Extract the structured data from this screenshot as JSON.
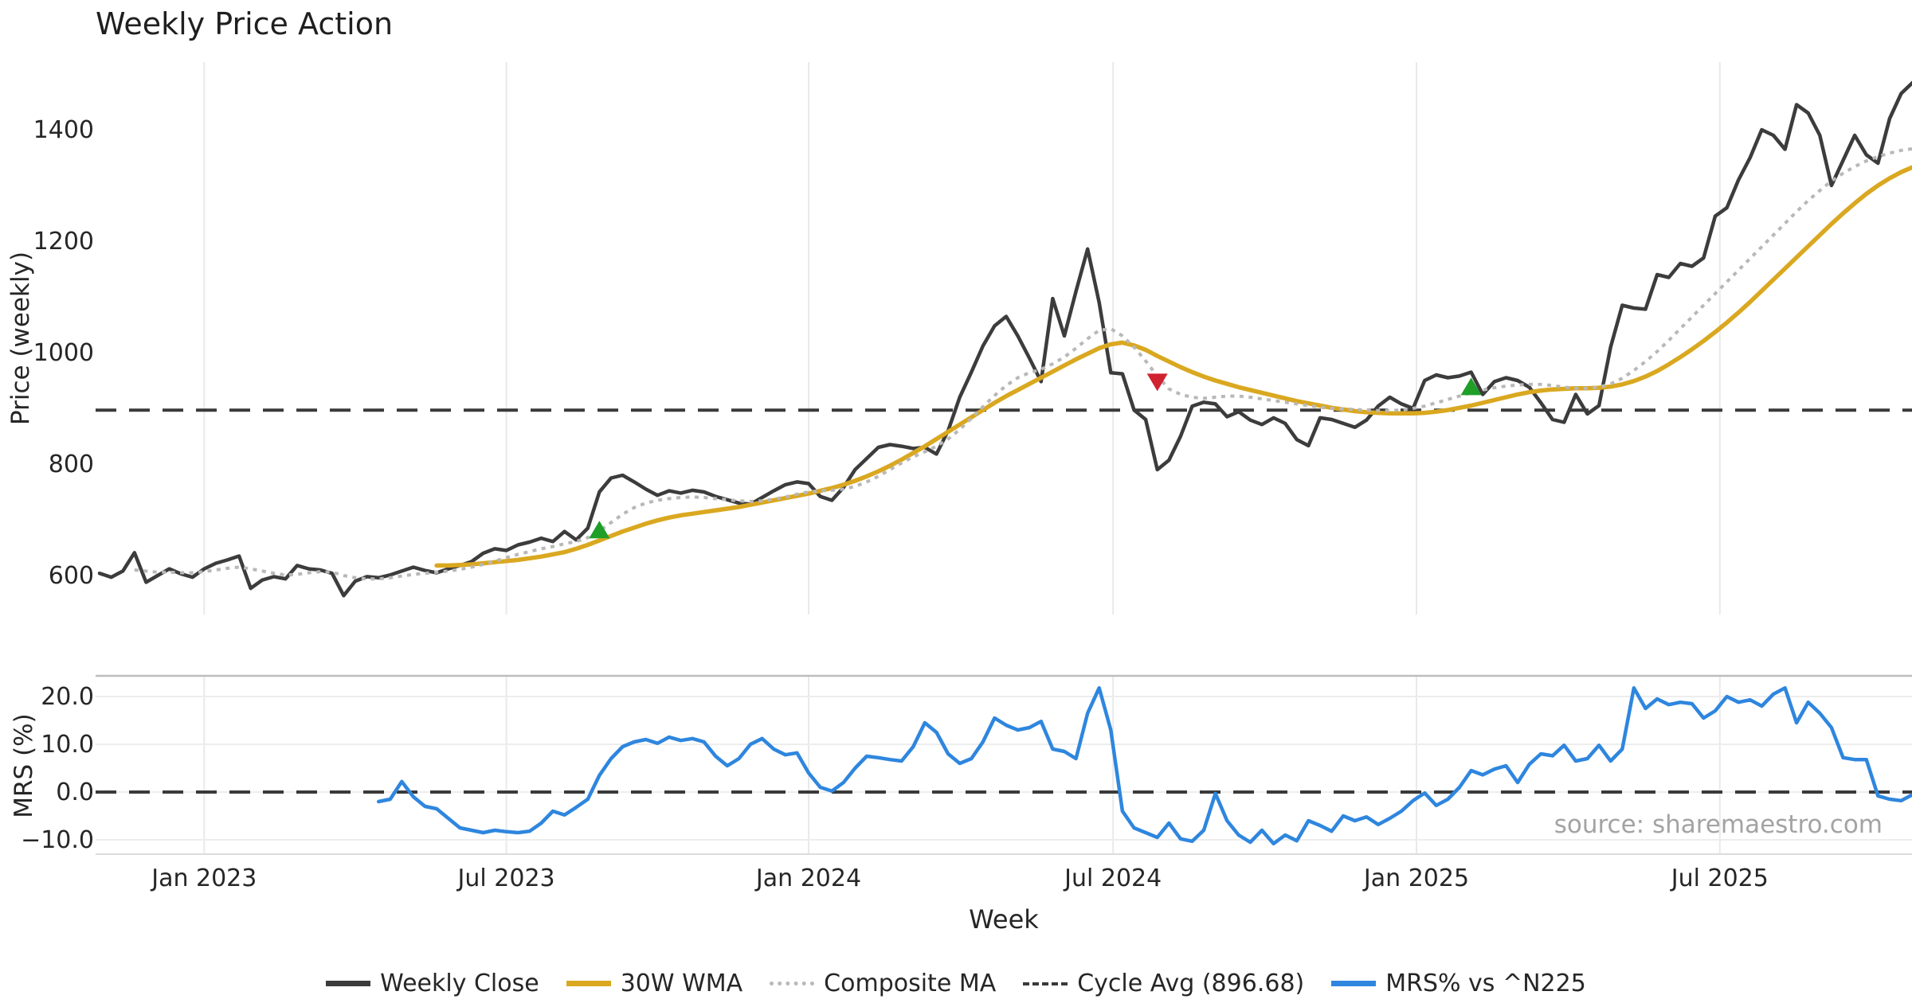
{
  "title": "Weekly Price Action",
  "source_note": "source: sharemaestro.com",
  "colors": {
    "close": "#3c3c3c",
    "wma": "#daa820",
    "composite": "#b8b8b8",
    "cycle_avg": "#3a3a3a",
    "mrs": "#2e86de",
    "buy_marker": "#1f9e28",
    "sell_marker": "#d12230",
    "grid": "#e9e9e9",
    "grid_h": "#ededed",
    "spine_top": "#bdbdbd",
    "spine_bottom": "#dcdcdc",
    "tick_text": "#262626",
    "source_text": "#a3a3a3"
  },
  "x_axis": {
    "label": "Week",
    "n_weeks": 157,
    "ticks": [
      {
        "label": "Jan 2023",
        "week": 9
      },
      {
        "label": "Jul 2023",
        "week": 35
      },
      {
        "label": "Jan 2024",
        "week": 61
      },
      {
        "label": "Jul 2024",
        "week": 87.2
      },
      {
        "label": "Jan 2025",
        "week": 113.3
      },
      {
        "label": "Jul 2025",
        "week": 139.4
      }
    ]
  },
  "chart_data": [
    {
      "type": "line",
      "title": "Weekly Price Action",
      "xlabel": "Week",
      "ylabel": "Price (weekly)",
      "yticks": [
        600,
        800,
        1000,
        1200,
        1400
      ],
      "ytick_labels": [
        "600",
        "800",
        "1000",
        "1200",
        "1400"
      ],
      "ylim": [
        530,
        1521.4
      ],
      "grid": "vertical-only",
      "hline": {
        "label": "Cycle Avg (896.68)",
        "value": 896.68,
        "style": "dashed",
        "color": "#3a3a3a"
      },
      "markers": [
        {
          "shape": "triangle-up",
          "week": 43,
          "value": 681,
          "color": "#1f9e28"
        },
        {
          "shape": "triangle-down",
          "week": 91,
          "value": 948,
          "color": "#d12230"
        },
        {
          "shape": "triangle-up",
          "week": 118,
          "value": 938,
          "color": "#1f9e28"
        }
      ],
      "series": [
        {
          "name": "Weekly Close",
          "color": "#3c3c3c",
          "style": "solid",
          "width": 4.5,
          "start_week": 0,
          "values": [
            604,
            597,
            608,
            641,
            588,
            600,
            612,
            603,
            597,
            612,
            622,
            628,
            635,
            577,
            592,
            598,
            594,
            618,
            612,
            610,
            604,
            564,
            590,
            598,
            596,
            601,
            608,
            615,
            609,
            605,
            612,
            618,
            625,
            640,
            648,
            645,
            655,
            660,
            667,
            661,
            679,
            664,
            685,
            750,
            775,
            780,
            768,
            755,
            744,
            752,
            748,
            753,
            750,
            742,
            736,
            730,
            728,
            740,
            752,
            763,
            768,
            765,
            742,
            735,
            758,
            790,
            810,
            830,
            835,
            832,
            828,
            830,
            818,
            860,
            920,
            965,
            1012,
            1048,
            1065,
            1030,
            990,
            948,
            1097,
            1030,
            1110,
            1186,
            1090,
            964,
            962,
            897,
            880,
            790,
            807,
            850,
            904,
            911,
            908,
            885,
            894,
            879,
            871,
            883,
            873,
            844,
            833,
            883,
            880,
            873,
            866,
            879,
            904,
            920,
            908,
            900,
            950,
            960,
            955,
            958,
            965,
            925,
            948,
            955,
            950,
            938,
            910,
            880,
            875,
            925,
            890,
            905,
            1010,
            1085,
            1080,
            1078,
            1140,
            1135,
            1160,
            1155,
            1170,
            1245,
            1260,
            1310,
            1350,
            1400,
            1390,
            1365,
            1445,
            1430,
            1390,
            1300,
            1345,
            1390,
            1355,
            1340,
            1420,
            1465,
            1485
          ]
        },
        {
          "name": "30W WMA",
          "color": "#daa820",
          "style": "solid",
          "width": 5.5,
          "start_week": 29,
          "values": [
            618,
            618,
            619,
            620,
            622,
            624,
            626,
            628,
            631,
            634,
            638,
            642,
            648,
            655,
            663,
            671,
            679,
            686,
            693,
            699,
            704,
            708,
            711,
            714,
            717,
            720,
            723,
            727,
            731,
            735,
            739,
            743,
            747,
            752,
            757,
            763,
            770,
            778,
            787,
            797,
            808,
            820,
            832,
            845,
            858,
            871,
            884,
            897,
            910,
            922,
            933,
            944,
            955,
            966,
            977,
            988,
            998,
            1008,
            1015,
            1018,
            1013,
            1005,
            994,
            984,
            974,
            965,
            957,
            950,
            944,
            938,
            933,
            928,
            923,
            918,
            913,
            909,
            905,
            901,
            898,
            895,
            893,
            892,
            891,
            891,
            891,
            892,
            894,
            897,
            901,
            905,
            910,
            915,
            920,
            925,
            929,
            932,
            934,
            935,
            936,
            936,
            937,
            939,
            943,
            949,
            957,
            967,
            979,
            992,
            1006,
            1021,
            1037,
            1054,
            1072,
            1091,
            1111,
            1131,
            1151,
            1171,
            1191,
            1211,
            1231,
            1250,
            1268,
            1285,
            1300,
            1313,
            1324,
            1333
          ]
        },
        {
          "name": "Composite MA",
          "color": "#b8b8b8",
          "style": "dotted",
          "width": 4,
          "start_week": 3,
          "values": [
            610,
            608,
            606,
            606,
            605,
            605,
            607,
            610,
            613,
            615,
            612,
            608,
            604,
            601,
            602,
            605,
            607,
            606,
            600,
            596,
            594,
            594,
            596,
            599,
            602,
            604,
            606,
            608,
            611,
            615,
            620,
            626,
            632,
            638,
            643,
            648,
            652,
            657,
            661,
            668,
            680,
            695,
            710,
            722,
            730,
            735,
            738,
            740,
            741,
            740,
            738,
            736,
            734,
            733,
            734,
            737,
            741,
            746,
            750,
            752,
            753,
            755,
            760,
            768,
            778,
            790,
            802,
            813,
            822,
            832,
            845,
            862,
            882,
            903,
            923,
            941,
            955,
            964,
            970,
            980,
            992,
            1008,
            1025,
            1040,
            1043,
            1030,
            1010,
            985,
            958,
            935,
            925,
            920,
            918,
            920,
            922,
            922,
            920,
            917,
            914,
            911,
            908,
            905,
            902,
            900,
            899,
            898,
            897,
            896,
            896,
            897,
            900,
            904,
            910,
            916,
            922,
            928,
            933,
            937,
            940,
            942,
            943,
            943,
            941,
            938,
            936,
            936,
            938,
            944,
            954,
            968,
            984,
            1002,
            1022,
            1043,
            1064,
            1085,
            1106,
            1127,
            1148,
            1169,
            1190,
            1211,
            1232,
            1253,
            1273,
            1291,
            1308,
            1322,
            1334,
            1344,
            1352,
            1358,
            1363,
            1366
          ]
        }
      ]
    },
    {
      "type": "line",
      "ylabel": "MRS (%)",
      "yticks": [
        -10,
        0,
        10,
        20
      ],
      "ytick_labels": [
        "−10.0",
        "0.0",
        "10.0",
        "20.0"
      ],
      "ylim": [
        -13,
        24.33
      ],
      "grid": "both",
      "hline": {
        "value": 0,
        "style": "dashed",
        "color": "#3a3a3a"
      },
      "series": [
        {
          "name": "MRS% vs ^N225",
          "color": "#2e86de",
          "style": "solid",
          "width": 4.5,
          "start_week": 24,
          "values": [
            -2.0,
            -1.5,
            2.2,
            -1.0,
            -3.0,
            -3.5,
            -5.5,
            -7.5,
            -8.0,
            -8.5,
            -8.0,
            -8.3,
            -8.5,
            -8.2,
            -6.5,
            -4.0,
            -4.8,
            -3.2,
            -1.5,
            3.5,
            7.0,
            9.5,
            10.5,
            11.0,
            10.2,
            11.5,
            10.8,
            11.2,
            10.5,
            7.5,
            5.5,
            7.0,
            10.0,
            11.2,
            9.0,
            7.8,
            8.2,
            4.0,
            1.0,
            0.2,
            2.0,
            5.0,
            7.5,
            7.2,
            6.8,
            6.5,
            9.5,
            14.5,
            12.5,
            8.0,
            6.0,
            7.0,
            10.5,
            15.5,
            14.0,
            13.0,
            13.5,
            14.8,
            9.0,
            8.5,
            7.0,
            16.5,
            21.8,
            13.0,
            -4.0,
            -7.5,
            -8.5,
            -9.5,
            -6.5,
            -9.8,
            -10.3,
            -8.0,
            -0.3,
            -6.0,
            -9.0,
            -10.5,
            -8.0,
            -10.8,
            -9.0,
            -10.2,
            -6.0,
            -7.0,
            -8.2,
            -5.0,
            -6.0,
            -5.2,
            -6.8,
            -5.5,
            -4.0,
            -1.8,
            -0.2,
            -2.8,
            -1.5,
            1.0,
            4.5,
            3.6,
            4.8,
            5.5,
            2.0,
            5.8,
            8.0,
            7.6,
            9.8,
            6.5,
            7.0,
            9.8,
            6.5,
            9.0,
            21.8,
            17.5,
            19.5,
            18.3,
            18.8,
            18.5,
            15.5,
            17.0,
            20.0,
            18.8,
            19.3,
            18.0,
            20.5,
            21.8,
            14.5,
            18.8,
            16.5,
            13.5,
            7.2,
            6.8,
            6.8,
            -0.8,
            -1.5,
            -1.8,
            -0.5
          ]
        }
      ]
    }
  ],
  "legend": {
    "items": [
      {
        "label": "Weekly Close",
        "color": "#3c3c3c",
        "style": "solid"
      },
      {
        "label": "30W WMA",
        "color": "#daa820",
        "style": "solid"
      },
      {
        "label": "Composite MA",
        "color": "#b8b8b8",
        "style": "dotted"
      },
      {
        "label": "Cycle Avg (896.68)",
        "color": "#3a3a3a",
        "style": "dashed"
      },
      {
        "label": "MRS% vs ^N225",
        "color": "#2e86de",
        "style": "solid"
      }
    ]
  }
}
